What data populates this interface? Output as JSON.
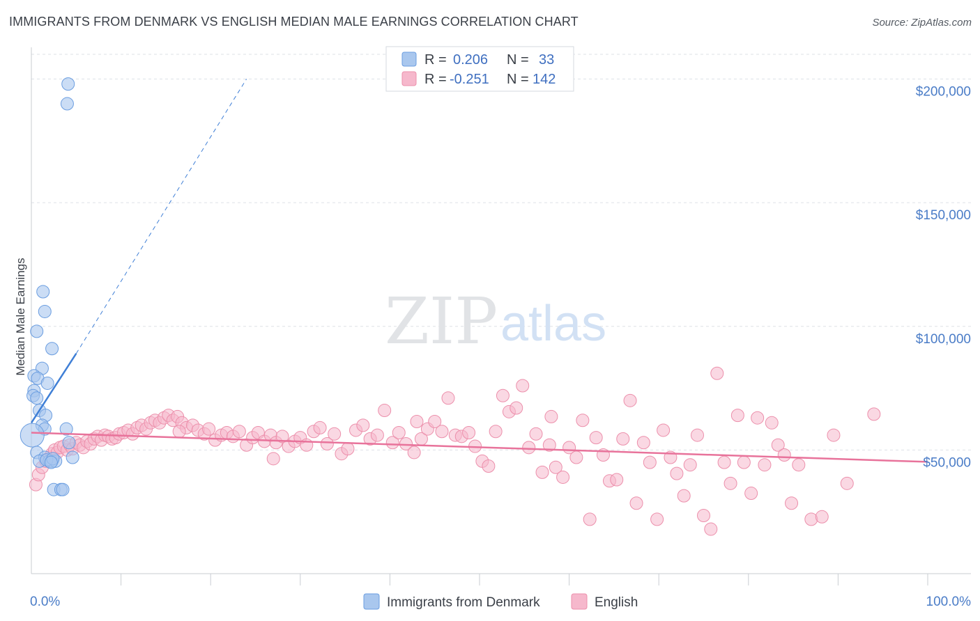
{
  "header": {
    "title": "IMMIGRANTS FROM DENMARK VS ENGLISH MEDIAN MALE EARNINGS CORRELATION CHART",
    "source": "Source: ZipAtlas.com"
  },
  "watermark": {
    "zip": "ZIP",
    "atlas": "atlas"
  },
  "legend": {
    "r_label": "R =",
    "n_label": "N =",
    "rows": [
      {
        "r": "0.206",
        "n": "33",
        "color": "#a9c7ee"
      },
      {
        "r": "-0.251",
        "n": "142",
        "color": "#f6b8cc"
      }
    ]
  },
  "colors": {
    "blue_fill": "#a9c7ee",
    "blue_stroke": "#6a9de0",
    "blue_line": "#3f7fd6",
    "pink_fill": "#f6b8cc",
    "pink_stroke": "#ec8fab",
    "pink_line": "#e8739b",
    "grid": "#dde1e6",
    "tick_text": "#4a7cc7"
  },
  "chart_data": {
    "type": "scatter",
    "title": "IMMIGRANTS FROM DENMARK VS ENGLISH MEDIAN MALE EARNINGS CORRELATION CHART",
    "xlabel": "",
    "ylabel": "Median Male Earnings",
    "xlim": [
      0,
      100
    ],
    "ylim": [
      0,
      210000
    ],
    "x_tick_labels": [
      "0.0%",
      "100.0%"
    ],
    "y_ticks": [
      {
        "value": 50000,
        "label": "$50,000"
      },
      {
        "value": 100000,
        "label": "$100,000"
      },
      {
        "value": 150000,
        "label": "$150,000"
      },
      {
        "value": 200000,
        "label": "$200,000"
      }
    ],
    "grid": true,
    "legend_position": "bottom",
    "series": [
      {
        "name": "Immigrants from Denmark",
        "color": "#a9c7ee",
        "r": 0.206,
        "n": 33,
        "trendline": {
          "x": [
            0,
            5
          ],
          "y": [
            61000,
            89000
          ],
          "dashed_extension_to": [
            24,
            200000
          ]
        },
        "points": [
          [
            4.1,
            198000
          ],
          [
            4.0,
            190000
          ],
          [
            1.3,
            114000
          ],
          [
            1.5,
            106000
          ],
          [
            0.6,
            98000
          ],
          [
            2.3,
            91000
          ],
          [
            1.2,
            83000
          ],
          [
            0.3,
            80000
          ],
          [
            0.7,
            79000
          ],
          [
            1.8,
            77000
          ],
          [
            0.3,
            74000
          ],
          [
            0.2,
            72000
          ],
          [
            0.6,
            71000
          ],
          [
            0.9,
            66000
          ],
          [
            1.6,
            64000
          ],
          [
            1.2,
            60000
          ],
          [
            1.5,
            58500
          ],
          [
            3.9,
            58500
          ],
          [
            0.1,
            56000
          ],
          [
            4.2,
            53000
          ],
          [
            0.6,
            49000
          ],
          [
            1.5,
            47000
          ],
          [
            4.6,
            47000
          ],
          [
            0.9,
            45500
          ],
          [
            2.0,
            45500
          ],
          [
            2.3,
            45500
          ],
          [
            2.7,
            45500
          ],
          [
            1.7,
            46000
          ],
          [
            2.4,
            46500
          ],
          [
            2.5,
            34000
          ],
          [
            3.3,
            34000
          ],
          [
            3.5,
            34000
          ],
          [
            2.2,
            45000
          ]
        ]
      },
      {
        "name": "English",
        "color": "#f6b8cc",
        "r": -0.251,
        "n": 142,
        "trendline": {
          "x": [
            0,
            100
          ],
          "y": [
            57000,
            45200
          ]
        },
        "points": [
          [
            0.5,
            36000
          ],
          [
            0.8,
            40000
          ],
          [
            1.2,
            43000
          ],
          [
            1.6,
            45500
          ],
          [
            2.0,
            47000
          ],
          [
            2.3,
            48500
          ],
          [
            2.6,
            50000
          ],
          [
            2.9,
            49000
          ],
          [
            3.2,
            51000
          ],
          [
            3.6,
            51500
          ],
          [
            4.0,
            50000
          ],
          [
            4.3,
            52000
          ],
          [
            4.6,
            50500
          ],
          [
            5.0,
            53000
          ],
          [
            5.4,
            52000
          ],
          [
            5.8,
            51000
          ],
          [
            6.2,
            53500
          ],
          [
            6.6,
            52500
          ],
          [
            7.0,
            54500
          ],
          [
            7.4,
            55500
          ],
          [
            7.8,
            54000
          ],
          [
            8.2,
            56000
          ],
          [
            8.6,
            55500
          ],
          [
            9.0,
            54500
          ],
          [
            9.4,
            55000
          ],
          [
            9.8,
            56500
          ],
          [
            10.3,
            57000
          ],
          [
            10.8,
            58000
          ],
          [
            11.3,
            56500
          ],
          [
            11.8,
            59000
          ],
          [
            12.3,
            60000
          ],
          [
            12.8,
            58500
          ],
          [
            13.3,
            61000
          ],
          [
            13.8,
            62000
          ],
          [
            14.3,
            61000
          ],
          [
            14.8,
            63000
          ],
          [
            15.3,
            64000
          ],
          [
            15.8,
            62000
          ],
          [
            16.3,
            63500
          ],
          [
            16.8,
            61000
          ],
          [
            17.3,
            59000
          ],
          [
            18.0,
            60000
          ],
          [
            18.6,
            58000
          ],
          [
            19.3,
            56500
          ],
          [
            19.8,
            58500
          ],
          [
            20.5,
            54000
          ],
          [
            21.2,
            56000
          ],
          [
            21.8,
            57000
          ],
          [
            22.5,
            55500
          ],
          [
            23.2,
            57500
          ],
          [
            24.0,
            52000
          ],
          [
            24.7,
            55000
          ],
          [
            25.3,
            57000
          ],
          [
            26.0,
            53500
          ],
          [
            26.7,
            56000
          ],
          [
            27.3,
            53000
          ],
          [
            28.0,
            55500
          ],
          [
            28.7,
            51500
          ],
          [
            29.4,
            53500
          ],
          [
            30.0,
            55000
          ],
          [
            30.7,
            52000
          ],
          [
            31.5,
            57500
          ],
          [
            32.2,
            59000
          ],
          [
            33.0,
            52500
          ],
          [
            33.8,
            56500
          ],
          [
            34.6,
            48500
          ],
          [
            35.3,
            50500
          ],
          [
            36.2,
            58000
          ],
          [
            37.0,
            60000
          ],
          [
            37.8,
            54500
          ],
          [
            38.6,
            56000
          ],
          [
            39.4,
            66000
          ],
          [
            40.3,
            53000
          ],
          [
            41.0,
            57000
          ],
          [
            41.8,
            52500
          ],
          [
            42.7,
            49000
          ],
          [
            43.5,
            54500
          ],
          [
            44.2,
            58500
          ],
          [
            45.0,
            61500
          ],
          [
            45.8,
            57500
          ],
          [
            46.5,
            71000
          ],
          [
            47.3,
            56000
          ],
          [
            48.0,
            55500
          ],
          [
            48.8,
            57000
          ],
          [
            49.5,
            51500
          ],
          [
            50.3,
            45500
          ],
          [
            51.0,
            43500
          ],
          [
            51.8,
            57500
          ],
          [
            52.6,
            72000
          ],
          [
            53.3,
            65500
          ],
          [
            54.1,
            67000
          ],
          [
            54.8,
            76000
          ],
          [
            55.5,
            51000
          ],
          [
            56.3,
            56500
          ],
          [
            57.0,
            41000
          ],
          [
            57.8,
            52000
          ],
          [
            58.5,
            43000
          ],
          [
            59.3,
            39000
          ],
          [
            60.0,
            51000
          ],
          [
            60.8,
            47000
          ],
          [
            61.5,
            62000
          ],
          [
            62.3,
            22000
          ],
          [
            63.0,
            55000
          ],
          [
            63.8,
            48000
          ],
          [
            64.5,
            37500
          ],
          [
            65.3,
            38000
          ],
          [
            66.0,
            54500
          ],
          [
            66.8,
            70000
          ],
          [
            67.5,
            28500
          ],
          [
            68.3,
            53000
          ],
          [
            69.0,
            45000
          ],
          [
            69.8,
            22000
          ],
          [
            70.5,
            58000
          ],
          [
            71.3,
            47000
          ],
          [
            72.0,
            40500
          ],
          [
            72.8,
            31500
          ],
          [
            73.5,
            44000
          ],
          [
            74.3,
            56000
          ],
          [
            75.0,
            23500
          ],
          [
            75.8,
            18000
          ],
          [
            76.5,
            81000
          ],
          [
            77.3,
            45000
          ],
          [
            78.0,
            36500
          ],
          [
            78.8,
            64000
          ],
          [
            79.5,
            45000
          ],
          [
            80.3,
            32500
          ],
          [
            81.0,
            63000
          ],
          [
            81.8,
            44000
          ],
          [
            82.6,
            61000
          ],
          [
            83.3,
            52000
          ],
          [
            84.0,
            48000
          ],
          [
            84.8,
            28500
          ],
          [
            85.6,
            44000
          ],
          [
            87.0,
            22000
          ],
          [
            88.2,
            23000
          ],
          [
            89.5,
            56000
          ],
          [
            91.0,
            36500
          ],
          [
            94.0,
            64500
          ],
          [
            16.5,
            57500
          ],
          [
            27.0,
            46500
          ],
          [
            43.0,
            61500
          ],
          [
            58.0,
            63500
          ]
        ]
      }
    ]
  },
  "bottom_legend": {
    "items": [
      {
        "label": "Immigrants from Denmark",
        "color": "#a9c7ee"
      },
      {
        "label": "English",
        "color": "#f6b8cc"
      }
    ]
  }
}
